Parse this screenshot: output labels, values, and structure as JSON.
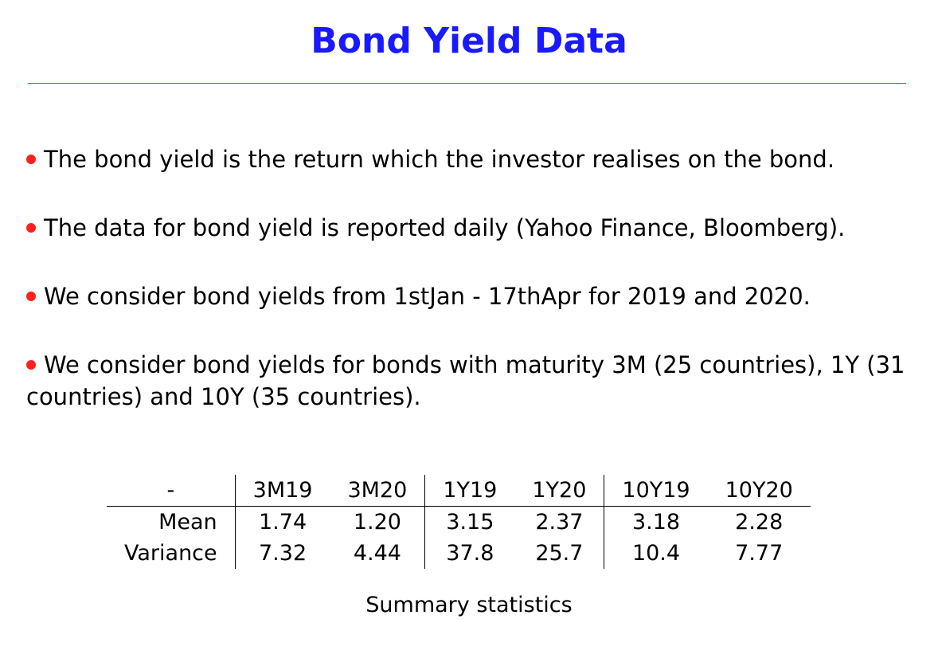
{
  "title": "Bond Yield Data",
  "colors": {
    "title": "#1a1aff",
    "rule": "#ff2020",
    "bullet": "#ff2020"
  },
  "bullets": [
    "The bond yield is the return which the investor realises on the bond.",
    "The data for bond yield is reported daily (Yahoo Finance, Bloomberg).",
    "We consider bond yields from 1stJan - 17thApr for 2019 and 2020.",
    "We consider bond yields for bonds with maturity 3M (25 countries), 1Y (31 countries) and 10Y (35 countries)."
  ],
  "table": {
    "corner": "-",
    "columns": [
      "3M19",
      "3M20",
      "1Y19",
      "1Y20",
      "10Y19",
      "10Y20"
    ],
    "rows": [
      {
        "label": "Mean",
        "values": [
          "1.74",
          "1.20",
          "3.15",
          "2.37",
          "3.18",
          "2.28"
        ]
      },
      {
        "label": "Variance",
        "values": [
          "7.32",
          "4.44",
          "37.8",
          "25.7",
          "10.4",
          "7.77"
        ]
      }
    ]
  },
  "caption": "Summary statistics"
}
